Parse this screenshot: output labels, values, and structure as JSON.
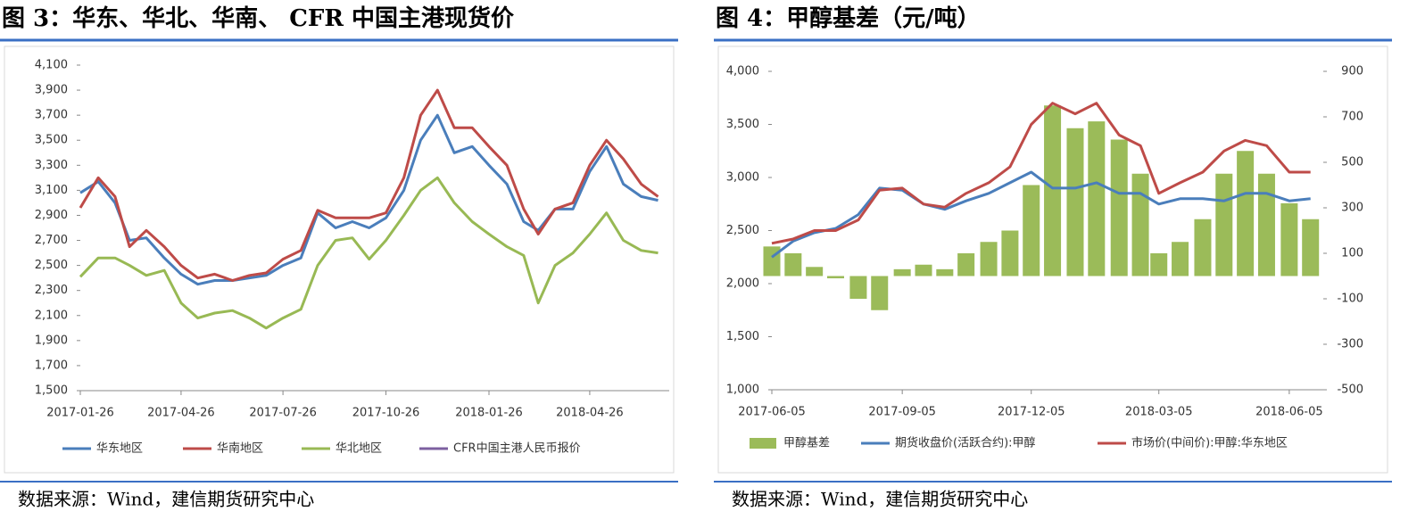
{
  "chart_data": [
    {
      "type": "line",
      "title": "图 3：华东、华北、华南、 CFR 中国主港现货价",
      "source": "数据来源：Wind，建信期货研究中心",
      "x": [
        "2017-01-26",
        "2017-02-11",
        "2017-02-26",
        "2017-03-11",
        "2017-03-26",
        "2017-04-11",
        "2017-04-26",
        "2017-05-11",
        "2017-05-26",
        "2017-06-11",
        "2017-06-26",
        "2017-07-11",
        "2017-07-26",
        "2017-08-11",
        "2017-08-26",
        "2017-09-11",
        "2017-09-26",
        "2017-10-11",
        "2017-10-26",
        "2017-11-11",
        "2017-11-26",
        "2017-12-11",
        "2017-12-26",
        "2018-01-11",
        "2018-01-26",
        "2018-02-11",
        "2018-02-26",
        "2018-03-11",
        "2018-03-26",
        "2018-04-11",
        "2018-04-26",
        "2018-05-11",
        "2018-05-26",
        "2018-06-11",
        "2018-06-26"
      ],
      "xlim": [
        "2017-01-26",
        "2018-07-06"
      ],
      "xticks": [
        "2017-01-26",
        "2017-04-26",
        "2017-07-26",
        "2017-10-26",
        "2018-01-26",
        "2018-04-26"
      ],
      "ylim": [
        1500,
        4100
      ],
      "yticks": [
        {
          "value": 1500,
          "label": "1,500"
        },
        {
          "value": 1700,
          "label": "1,700"
        },
        {
          "value": 1900,
          "label": "1,900"
        },
        {
          "value": 2100,
          "label": "2,100"
        },
        {
          "value": 2300,
          "label": "2,300"
        },
        {
          "value": 2500,
          "label": "2,500"
        },
        {
          "value": 2700,
          "label": "2,700"
        },
        {
          "value": 2900,
          "label": "2,900"
        },
        {
          "value": 3100,
          "label": "3,100"
        },
        {
          "value": 3300,
          "label": "3,300"
        },
        {
          "value": 3500,
          "label": "3,500"
        },
        {
          "value": 3700,
          "label": "3,700"
        },
        {
          "value": 3900,
          "label": "3,900"
        },
        {
          "value": 4100,
          "label": "4,100"
        }
      ],
      "series": [
        {
          "name": "华东地区",
          "color": "#4a7ebb",
          "values": [
            3080,
            3170,
            3000,
            2700,
            2720,
            2560,
            2430,
            2350,
            2380,
            2380,
            2400,
            2420,
            2500,
            2560,
            2920,
            2800,
            2850,
            2800,
            2880,
            3100,
            3500,
            3700,
            3400,
            3450,
            3300,
            3150,
            2850,
            2780,
            2950,
            2950,
            3250,
            3450,
            3150,
            3050,
            3020
          ]
        },
        {
          "name": "华南地区",
          "color": "#be4b48",
          "values": [
            2960,
            3200,
            3050,
            2650,
            2780,
            2650,
            2500,
            2400,
            2430,
            2380,
            2420,
            2440,
            2550,
            2620,
            2940,
            2880,
            2880,
            2880,
            2920,
            3200,
            3700,
            3900,
            3600,
            3600,
            3450,
            3300,
            2950,
            2750,
            2950,
            3000,
            3300,
            3500,
            3350,
            3150,
            3050
          ]
        },
        {
          "name": "华北地区",
          "color": "#98b954",
          "values": [
            2410,
            2560,
            2560,
            2500,
            2420,
            2460,
            2200,
            2080,
            2120,
            2140,
            2080,
            2000,
            2080,
            2150,
            2500,
            2700,
            2720,
            2550,
            2700,
            2900,
            3100,
            3200,
            3000,
            2850,
            2750,
            2650,
            2580,
            2200,
            2500,
            2600,
            2750,
            2920,
            2700,
            2620,
            2600
          ]
        },
        {
          "name": "CFR中国主港人民币报价",
          "color": "#7d60a0",
          "values": [
            null,
            null,
            null,
            null,
            null,
            null,
            null,
            null,
            null,
            null,
            null,
            null,
            null,
            null,
            null,
            null,
            null,
            null,
            null,
            null,
            null,
            null,
            null,
            null,
            null,
            null,
            null,
            null,
            null,
            null,
            null,
            null,
            null,
            null,
            null
          ]
        }
      ]
    },
    {
      "type": "combo",
      "title": "图 4：甲醇基差（元/吨）",
      "source": "数据来源：Wind，建信期货研究中心",
      "x": [
        "2017-06-05",
        "2017-06-20",
        "2017-07-05",
        "2017-07-20",
        "2017-08-05",
        "2017-08-20",
        "2017-09-05",
        "2017-09-20",
        "2017-10-05",
        "2017-10-20",
        "2017-11-05",
        "2017-11-20",
        "2017-12-05",
        "2017-12-20",
        "2018-01-05",
        "2018-01-20",
        "2018-02-05",
        "2018-02-20",
        "2018-03-05",
        "2018-03-20",
        "2018-04-05",
        "2018-04-20",
        "2018-05-05",
        "2018-05-20",
        "2018-06-05",
        "2018-06-20"
      ],
      "xlim": [
        "2017-06-05",
        "2018-06-29"
      ],
      "xticks": [
        "2017-06-05",
        "2017-09-05",
        "2017-12-05",
        "2018-03-05",
        "2018-06-05"
      ],
      "ylim": [
        1000,
        4000
      ],
      "yticks": [
        {
          "value": 1000,
          "label": "1,000"
        },
        {
          "value": 1500,
          "label": "1,500"
        },
        {
          "value": 2000,
          "label": "2,000"
        },
        {
          "value": 2500,
          "label": "2,500"
        },
        {
          "value": 3000,
          "label": "3,000"
        },
        {
          "value": 3500,
          "label": "3,500"
        },
        {
          "value": 4000,
          "label": "4,000"
        }
      ],
      "y2lim": [
        -500,
        900
      ],
      "y2ticks": [
        -500,
        -300,
        -100,
        100,
        300,
        500,
        700,
        900
      ],
      "series": [
        {
          "name": "甲醇基差",
          "type": "bar",
          "axis": "y2",
          "color": "#9bbb59",
          "values": [
            130,
            100,
            40,
            -10,
            -100,
            -150,
            30,
            50,
            30,
            100,
            150,
            200,
            400,
            750,
            650,
            680,
            600,
            450,
            100,
            150,
            250,
            450,
            550,
            450,
            320,
            250
          ]
        },
        {
          "name": "期货收盘价(活跃合约):甲醇",
          "type": "line",
          "color": "#4a7ebb",
          "values": [
            2250,
            2400,
            2480,
            2520,
            2650,
            2900,
            2880,
            2750,
            2700,
            2780,
            2850,
            2950,
            3050,
            2900,
            2900,
            2950,
            2850,
            2850,
            2750,
            2800,
            2800,
            2780,
            2850,
            2850,
            2780,
            2800
          ]
        },
        {
          "name": "市场价(中间价):甲醇:华东地区",
          "type": "line",
          "color": "#be4b48",
          "values": [
            2380,
            2420,
            2500,
            2500,
            2600,
            2880,
            2900,
            2750,
            2720,
            2850,
            2950,
            3100,
            3500,
            3700,
            3600,
            3700,
            3400,
            3300,
            2850,
            2950,
            3050,
            3250,
            3350,
            3300,
            3050,
            3050
          ]
        }
      ]
    }
  ]
}
